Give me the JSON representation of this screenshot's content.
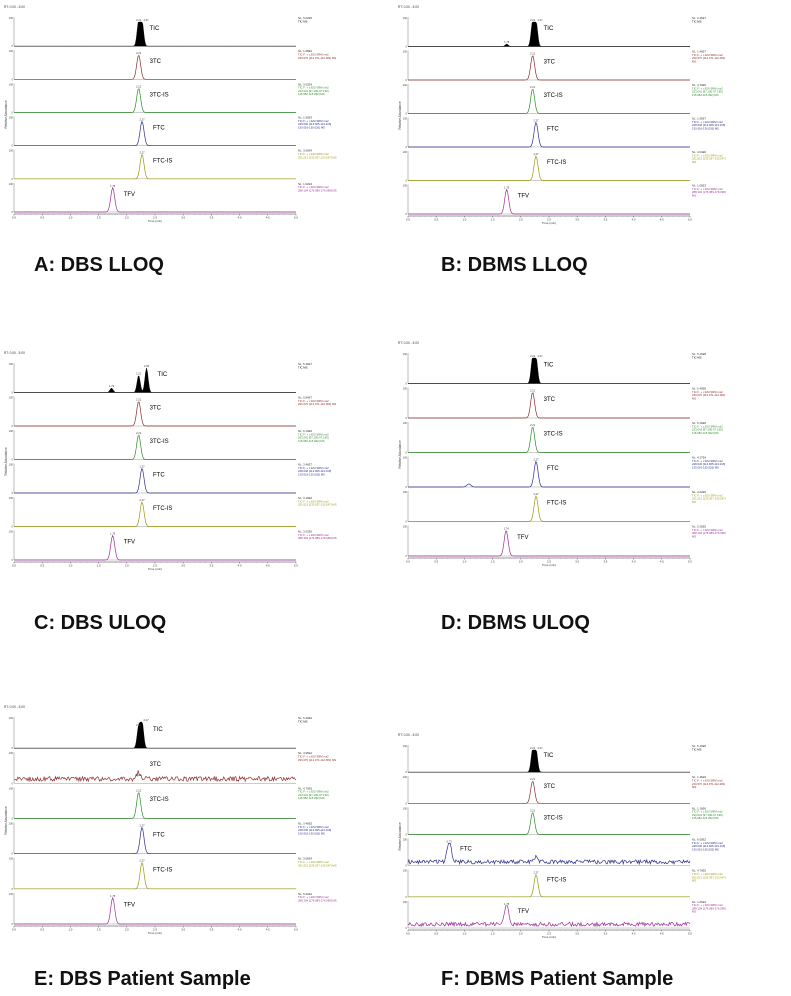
{
  "chart_data": [
    {
      "id": "A",
      "type": "line",
      "caption": "A: DBS LLOQ",
      "rt_header": "RT: 0.00 - 5.00",
      "xlabel": "Time (min)",
      "ylabel": "Relative Abundance",
      "x_ticks": [
        "0.0",
        "0.5",
        "1.0",
        "1.5",
        "2.0",
        "2.5",
        "3.0",
        "3.5",
        "4.0",
        "4.5",
        "5.0"
      ],
      "traces": [
        {
          "name": "TIC",
          "color": "#000000",
          "filled": true,
          "peaks": [
            {
              "x": 2.21,
              "label": "2.21"
            },
            {
              "x": 2.27,
              "label": "2.27"
            }
          ],
          "info": [
            "NL: 5.02E5",
            "TIC MS"
          ]
        },
        {
          "name": "3TC",
          "color": "#8a2e2e",
          "peaks": [
            {
              "x": 2.21,
              "label": "2.21"
            }
          ],
          "info": [
            "NL: 1.68E3",
            "TIC F: + c ESI SRM ms2",
            "230.070 [112.071-112.081]  MS"
          ]
        },
        {
          "name": "3TC-IS",
          "color": "#2e8a2e",
          "peaks": [
            {
              "x": 2.21,
              "label": "2.21"
            }
          ],
          "info": [
            "NL: 3.02E4",
            "TIC F: + c ESI SRM ms2",
            "233.041 [97.190-97.199]",
            "115.082-115.092]  MS"
          ]
        },
        {
          "name": "FTC",
          "color": "#2e2e8a",
          "peaks": [
            {
              "x": 2.27,
              "label": "2.27"
            }
          ],
          "info": [
            "NL: 1.90E3",
            "TIC F: + c ESI SRM ms2",
            "248.046 [113.005-113.015]",
            "130.016-130.026]  MS"
          ]
        },
        {
          "name": "FTC-IS",
          "color": "#9a9a10",
          "peaks": [
            {
              "x": 2.27,
              "label": "2.27"
            }
          ],
          "info": [
            "NL: 3.06E4",
            "TIC F: + c ESI SRM ms2",
            "251.013 [133.037-133.047]  MS"
          ]
        },
        {
          "name": "TFV",
          "color": "#9a2e9a",
          "peaks": [
            {
              "x": 1.75,
              "label": "1.75"
            }
          ],
          "info": [
            "NL: 1.02E3",
            "TIC F: + c ESI SRM ms2",
            "288.104 [176.089-176.099]  MS"
          ]
        }
      ]
    },
    {
      "id": "B",
      "type": "line",
      "caption": "B: DBMS LLOQ",
      "rt_header": "RT: 0.00 - 5.00",
      "xlabel": "Time (min)",
      "ylabel": "Relative Abundance",
      "x_ticks": [
        "0.0",
        "0.5",
        "1.0",
        "1.5",
        "2.0",
        "2.5",
        "3.0",
        "3.5",
        "4.0",
        "4.5",
        "5.0"
      ],
      "traces": [
        {
          "name": "TIC",
          "color": "#000000",
          "filled": true,
          "peaks": [
            {
              "x": 2.21,
              "label": "2.21"
            },
            {
              "x": 2.27,
              "label": "2.27"
            },
            {
              "x": 1.75,
              "label": "1.75",
              "h": 0.1
            }
          ],
          "info": [
            "NL: 2.46E7",
            "TIC MS"
          ]
        },
        {
          "name": "3TC",
          "color": "#8a2e2e",
          "peaks": [
            {
              "x": 2.21,
              "label": "2.21"
            }
          ],
          "info": [
            "NL: 1.46E7",
            "TIC F: + c ESI SRM ms2",
            "230.070 [112.071-112.081]",
            "MS"
          ]
        },
        {
          "name": "3TC-IS",
          "color": "#2e8a2e",
          "peaks": [
            {
              "x": 2.21,
              "label": "2.21"
            }
          ],
          "info": [
            "NL: 4.70E6",
            "TIC F: + c ESI SRM ms2",
            "233.041 [97.190-97.199]",
            "115.082-115.092]  MS"
          ]
        },
        {
          "name": "FTC",
          "color": "#2e2e8a",
          "peaks": [
            {
              "x": 2.27,
              "label": "2.27"
            }
          ],
          "info": [
            "NL: 1.96E7",
            "TIC F: + c ESI SRM ms2",
            "248.046 [113.005-113.015]",
            "130.016-130.026]  MS"
          ]
        },
        {
          "name": "FTC-IS",
          "color": "#9a9a10",
          "peaks": [
            {
              "x": 2.27,
              "label": "2.27"
            }
          ],
          "info": [
            "NL: 4.04E6",
            "TIC F: + c ESI SRM ms2",
            "251.013 [133.037-133.047]",
            "MS"
          ]
        },
        {
          "name": "TFV",
          "color": "#9a2e9a",
          "peaks": [
            {
              "x": 1.75,
              "label": "1.75"
            }
          ],
          "info": [
            "NL: 1.06E3",
            "TIC F: + c ESI SRM ms2",
            "288.104 [176.089-176.099]",
            "MS"
          ]
        }
      ]
    },
    {
      "id": "C",
      "type": "line",
      "caption": "C: DBS ULOQ",
      "rt_header": "RT: 0.00 - 5.00",
      "xlabel": "Time (min)",
      "ylabel": "Relative Abundance",
      "x_ticks": [
        "0.0",
        "0.5",
        "1.0",
        "1.5",
        "2.0",
        "2.5",
        "3.0",
        "3.5",
        "4.0",
        "4.5",
        "5.0"
      ],
      "traces": [
        {
          "name": "TIC",
          "color": "#000000",
          "filled": true,
          "peaks": [
            {
              "x": 2.21,
              "label": "2.21",
              "h": 0.7
            },
            {
              "x": 2.35,
              "label": "2.35"
            },
            {
              "x": 1.73,
              "label": "1.73",
              "h": 0.18
            }
          ],
          "info": [
            "NL: 5.49E7",
            "TIC MS"
          ]
        },
        {
          "name": "3TC",
          "color": "#8a2e2e",
          "peaks": [
            {
              "x": 2.21,
              "label": "2.21"
            }
          ],
          "info": [
            "NL: 5.84E7",
            "TIC F: + c ESI SRM ms2",
            "230.070 [112.071-112.081]  MS"
          ]
        },
        {
          "name": "3TC-IS",
          "color": "#2e8a2e",
          "peaks": [
            {
              "x": 2.21,
              "label": "2.21"
            }
          ],
          "info": [
            "NL: 6.10E6",
            "TIC F: + c ESI SRM ms2",
            "233.041 [97.190-97.199]",
            "115.082-115.092]  MS"
          ]
        },
        {
          "name": "FTC",
          "color": "#2e2e8a",
          "peaks": [
            {
              "x": 2.27,
              "label": "2.27"
            }
          ],
          "info": [
            "NL: 3.46E7",
            "TIC F: + c ESI SRM ms2",
            "248.046 [113.005-113.015]",
            "130.016-130.026]  MS"
          ]
        },
        {
          "name": "FTC-IS",
          "color": "#9a9a10",
          "peaks": [
            {
              "x": 2.27,
              "label": "2.27"
            }
          ],
          "info": [
            "NL: 3.16E6",
            "TIC F: + c ESI SRM ms2",
            "251.013 [133.037-133.047]  MS"
          ]
        },
        {
          "name": "TFV",
          "color": "#9a2e9a",
          "peaks": [
            {
              "x": 1.75,
              "label": "1.75"
            }
          ],
          "info": [
            "NL: 3.02E5",
            "TIC F: + c ESI SRM ms2",
            "288.104 [176.089-176.099]  MS"
          ]
        }
      ]
    },
    {
      "id": "D",
      "type": "line",
      "caption": "D: DBMS ULOQ",
      "rt_header": "RT: 0.00 - 5.00",
      "xlabel": "Time (min)",
      "ylabel": "Relative Abundance",
      "x_ticks": [
        "0.0",
        "0.5",
        "1.0",
        "1.5",
        "2.0",
        "2.5",
        "3.0",
        "3.5",
        "4.0",
        "4.5",
        "5.0"
      ],
      "traces": [
        {
          "name": "TIC",
          "color": "#000000",
          "filled": true,
          "peaks": [
            {
              "x": 2.21,
              "label": "2.21"
            },
            {
              "x": 2.27,
              "label": "2.27"
            }
          ],
          "info": [
            "NL: 5.16E8",
            "TIC MS"
          ]
        },
        {
          "name": "3TC",
          "color": "#8a2e2e",
          "peaks": [
            {
              "x": 2.21,
              "label": "2.21"
            }
          ],
          "info": [
            "NL: 5.40E8",
            "TIC F: + c ESI SRM ms2",
            "230.070 [112.071-112.081]",
            "MS"
          ]
        },
        {
          "name": "3TC-IS",
          "color": "#2e8a2e",
          "peaks": [
            {
              "x": 2.21,
              "label": "2.21"
            }
          ],
          "info": [
            "NL: 6.16E6",
            "TIC F: + c ESI SRM ms2",
            "233.041 [97.190-97.199]",
            "115.082-115.092]  MS"
          ]
        },
        {
          "name": "FTC",
          "color": "#2e2e8a",
          "peaks": [
            {
              "x": 2.27,
              "label": "2.27"
            },
            {
              "x": 1.08,
              "label": "",
              "h": 0.12
            }
          ],
          "info": [
            "NL: 4.27E4",
            "TIC F: + c ESI SRM ms2",
            "248.046 [113.005-113.015]",
            "130.016-130.026]  MS"
          ]
        },
        {
          "name": "FTC-IS",
          "color": "#9a9a10",
          "peaks": [
            {
              "x": 2.27,
              "label": "2.27"
            }
          ],
          "info": [
            "NL: 3.02E6",
            "TIC F: + c ESI SRM ms2",
            "251.013 [133.037-133.047]",
            "MS"
          ]
        },
        {
          "name": "TFV",
          "color": "#9a2e9a",
          "peaks": [
            {
              "x": 1.74,
              "label": "1.74"
            }
          ],
          "info": [
            "NL: 5.26E5",
            "TIC F: + c ESI SRM ms2",
            "288.104 [176.089-176.099]",
            "MS"
          ]
        }
      ]
    },
    {
      "id": "E",
      "type": "line",
      "caption": "E: DBS Patient Sample",
      "rt_header": "RT: 0.00 - 5.00",
      "xlabel": "Time (min)",
      "ylabel": "Relative Abundance",
      "x_ticks": [
        "0.0",
        "0.5",
        "1.0",
        "1.5",
        "2.0",
        "2.5",
        "3.0",
        "3.5",
        "4.0",
        "4.5",
        "5.0"
      ],
      "traces": [
        {
          "name": "TIC",
          "color": "#000000",
          "filled": true,
          "peaks": [
            {
              "x": 2.21,
              "label": "2.21",
              "h": 0.8
            },
            {
              "x": 2.27,
              "label": "2.27"
            }
          ],
          "info": [
            "NL: 5.49E6",
            "TIC MS"
          ]
        },
        {
          "name": "3TC",
          "color": "#8a2e2e",
          "noisy": true,
          "peaks": [
            {
              "x": 2.21,
              "label": "2.21",
              "h": 0.25
            }
          ],
          "info": [
            "NL: 4.95E2",
            "TIC F: + c ESI SRM ms2",
            "230.070 [112.071-112.081]  MS"
          ]
        },
        {
          "name": "3TC-IS",
          "color": "#2e8a2e",
          "peaks": [
            {
              "x": 2.21,
              "label": "2.21"
            }
          ],
          "info": [
            "NL: 4.70E5",
            "TIC F: + c ESI SRM ms2",
            "233.041 [97.190-97.199]",
            "115.082-115.092]  MS"
          ]
        },
        {
          "name": "FTC",
          "color": "#2e2e8a",
          "peaks": [
            {
              "x": 2.27,
              "label": "2.27"
            }
          ],
          "info": [
            "NL: 3.46E5",
            "TIC F: + c ESI SRM ms2",
            "248.046 [113.005-113.015]",
            "130.016-130.026]  MS"
          ]
        },
        {
          "name": "FTC-IS",
          "color": "#9a9a10",
          "peaks": [
            {
              "x": 2.27,
              "label": "2.27"
            }
          ],
          "info": [
            "NL: 3.06E4",
            "TIC F: + c ESI SRM ms2",
            "251.013 [133.037-133.047]  MS"
          ]
        },
        {
          "name": "TFV",
          "color": "#9a2e9a",
          "peaks": [
            {
              "x": 1.75,
              "label": "1.75"
            }
          ],
          "info": [
            "NL: 5.02E4",
            "TIC F: + c ESI SRM ms2",
            "288.104 [176.089-176.099]  MS"
          ]
        }
      ]
    },
    {
      "id": "F",
      "type": "line",
      "caption": "F: DBMS Patient Sample",
      "rt_header": "RT: 0.00 - 5.00",
      "xlabel": "Time (min)",
      "ylabel": "Relative Abundance",
      "x_ticks": [
        "0.0",
        "0.5",
        "1.0",
        "1.5",
        "2.0",
        "2.5",
        "3.0",
        "3.5",
        "4.0",
        "4.5",
        "5.0"
      ],
      "traces": [
        {
          "name": "TIC",
          "color": "#000000",
          "filled": true,
          "peaks": [
            {
              "x": 2.21,
              "label": "2.21"
            },
            {
              "x": 2.27,
              "label": "2.27"
            }
          ],
          "info": [
            "NL: 5.10E6",
            "TIC MS"
          ]
        },
        {
          "name": "3TC",
          "color": "#8a2e2e",
          "peaks": [
            {
              "x": 2.21,
              "label": "2.21"
            }
          ],
          "info": [
            "NL: 1.46E6",
            "TIC F: + c ESI SRM ms2",
            "230.070 [112.071-112.081]",
            "MS"
          ]
        },
        {
          "name": "3TC-IS",
          "color": "#2e8a2e",
          "peaks": [
            {
              "x": 2.21,
              "label": "2.21"
            }
          ],
          "info": [
            "NL: 1.16E6",
            "TIC F: + c ESI SRM ms2",
            "233.041 [97.190-97.199]",
            "115.082-115.092]  MS"
          ]
        },
        {
          "name": "FTC",
          "color": "#2e2e8a",
          "noisy": true,
          "peaks": [
            {
              "x": 0.73,
              "label": "0.73"
            },
            {
              "x": 2.27,
              "label": "",
              "h": 0.25
            }
          ],
          "info": [
            "NL: 6.09E2",
            "TIC F: + c ESI SRM ms2",
            "248.046 [113.005-113.015]",
            "130.016-130.026]  MS"
          ]
        },
        {
          "name": "FTC-IS",
          "color": "#9a9a10",
          "peaks": [
            {
              "x": 2.27,
              "label": "2.27"
            }
          ],
          "info": [
            "NL: 4.70E5",
            "TIC F: + c ESI SRM ms2",
            "251.013 [133.037-133.047]",
            "MS"
          ]
        },
        {
          "name": "TFV",
          "color": "#9a2e9a",
          "noisy": true,
          "peaks": [
            {
              "x": 1.75,
              "label": "1.75"
            }
          ],
          "info": [
            "NL: 1.06E2",
            "TIC F: + c ESI SRM ms2",
            "288.104 [176.089-176.099]",
            "MS"
          ]
        }
      ]
    }
  ]
}
